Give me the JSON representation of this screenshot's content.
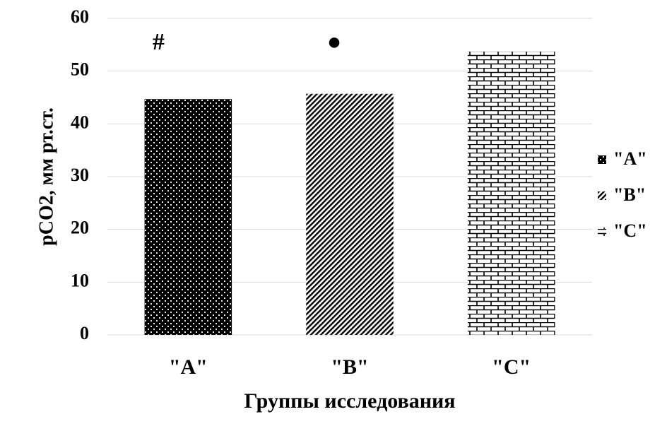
{
  "chart_data": {
    "type": "bar",
    "x_label": "Группы исследования",
    "y_label": "pCO2, мм рт.ст.",
    "categories": [
      "\"A\"",
      "\"B\"",
      "\"C\""
    ],
    "values": [
      44.7,
      45.7,
      53.7
    ],
    "patterns": [
      "dots",
      "diagonal",
      "brick"
    ],
    "annotations": [
      "#",
      "●",
      null
    ],
    "ylim": [
      0,
      60
    ],
    "yticks": [
      0,
      10,
      20,
      30,
      40,
      50,
      60
    ],
    "grid": true,
    "legend": "right"
  }
}
